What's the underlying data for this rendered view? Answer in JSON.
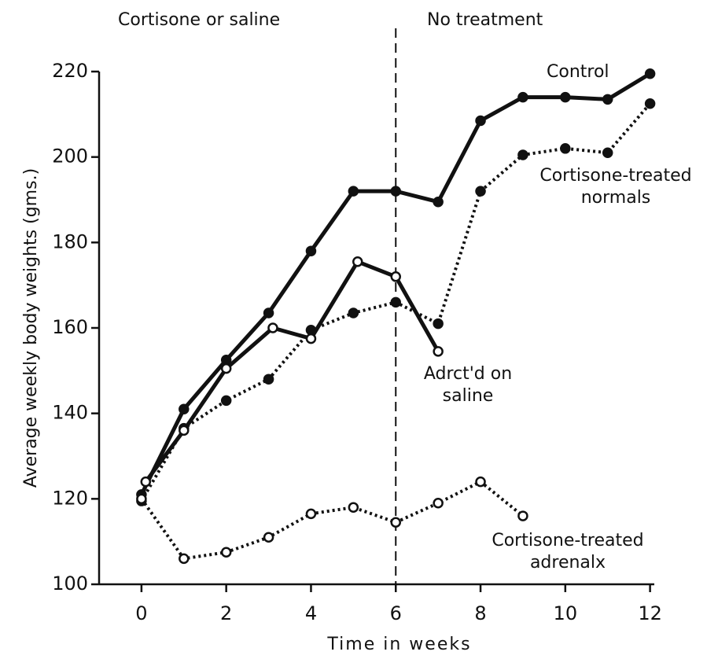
{
  "chart_data": {
    "type": "line",
    "xlabel": "Time in weeks",
    "ylabel": "Average weekly body weights (gms.)",
    "xlim": [
      -1,
      12.1
    ],
    "ylim": [
      100,
      220
    ],
    "xticks": [
      0,
      2,
      4,
      6,
      8,
      10,
      12
    ],
    "yticks": [
      100,
      120,
      140,
      160,
      180,
      200,
      220
    ],
    "divider": 6,
    "annotations": [
      "Cortisone or saline",
      "No treatment"
    ],
    "series": [
      {
        "name": "Control",
        "color": "#111111",
        "line": "solid",
        "marker": "filled",
        "x": [
          0,
          1,
          2,
          3,
          4,
          5,
          6,
          7,
          8,
          9,
          10,
          11,
          12
        ],
        "values": [
          121,
          141,
          152.5,
          163.5,
          178,
          192,
          192,
          189.5,
          208.5,
          214,
          214,
          213.5,
          219.5
        ]
      },
      {
        "name": "Cortisone-treated normals",
        "color": "#111111",
        "line": "dotted",
        "marker": "filled",
        "x": [
          0,
          1,
          2,
          3,
          4,
          5,
          6,
          7,
          8,
          9,
          10,
          11,
          12
        ],
        "values": [
          119.5,
          136.5,
          143,
          148,
          159.5,
          163.5,
          166,
          161,
          192,
          200.5,
          202,
          201,
          212.5
        ]
      },
      {
        "name": "Adrct'd on saline",
        "color": "#111111",
        "line": "solid",
        "marker": "open",
        "x": [
          0.1,
          1,
          2,
          3.1,
          4,
          5.1,
          6,
          7
        ],
        "values": [
          124,
          136,
          150.5,
          160,
          157.5,
          175.5,
          172,
          154.5
        ]
      },
      {
        "name": "Cortisone-treated adrenalx",
        "color": "#111111",
        "line": "dotted",
        "marker": "open",
        "x": [
          0,
          1,
          2,
          3,
          4,
          5,
          6,
          7,
          8,
          9
        ],
        "values": [
          120,
          106,
          107.5,
          111,
          116.5,
          118,
          114.5,
          119,
          124,
          116
        ]
      }
    ]
  }
}
